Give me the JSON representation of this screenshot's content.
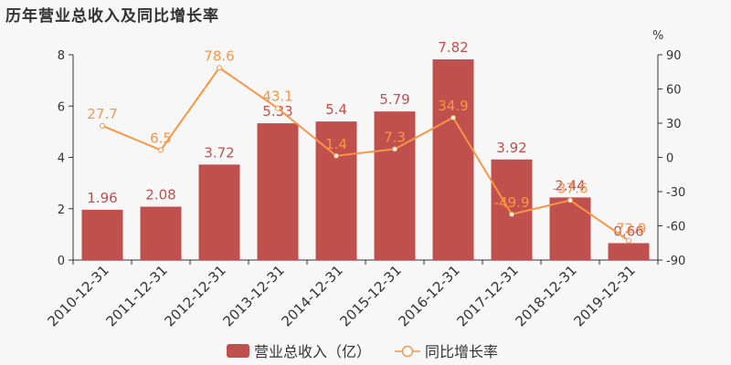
{
  "title": "历年营业总收入及同比增长率",
  "colors": {
    "bar": "#c0504d",
    "bar_label": "#c0504d",
    "line": "#f79646",
    "line_label": "#f79646",
    "axis": "#333333",
    "background": "#f8f7f7"
  },
  "chart_data": {
    "type": "bar",
    "categories": [
      "2010-12-31",
      "2011-12-31",
      "2012-12-31",
      "2013-12-31",
      "2014-12-31",
      "2015-12-31",
      "2016-12-31",
      "2017-12-31",
      "2018-12-31",
      "2019-12-31"
    ],
    "series": [
      {
        "name": "营业总收入（亿）",
        "type": "bar",
        "axis": "left",
        "values": [
          1.96,
          2.08,
          3.72,
          5.33,
          5.4,
          5.79,
          7.82,
          3.92,
          2.44,
          0.66
        ],
        "labels": [
          "1.96",
          "2.08",
          "3.72",
          "5.33",
          "5.4",
          "5.79",
          "7.82",
          "3.92",
          "2.44",
          "0.66"
        ]
      },
      {
        "name": "同比增长率",
        "type": "line",
        "axis": "right",
        "values": [
          27.7,
          6.5,
          78.6,
          43.1,
          1.4,
          7.3,
          34.9,
          -49.9,
          -37.6,
          -72.9
        ],
        "labels": [
          "27.7",
          "6.5",
          "78.6",
          "43.1",
          "1.4",
          "7.3",
          "34.9",
          "-49.9",
          "-37.6",
          "-72.9"
        ]
      }
    ],
    "y_left": {
      "range": [
        0,
        8
      ],
      "ticks": [
        "0",
        "2",
        "4",
        "6",
        "8"
      ]
    },
    "y_right": {
      "range": [
        -90,
        90
      ],
      "ticks": [
        "-90",
        "-60",
        "-30",
        "0",
        "30",
        "60",
        "90"
      ],
      "unit": "%"
    },
    "grid": false,
    "legend_position": "bottom"
  }
}
